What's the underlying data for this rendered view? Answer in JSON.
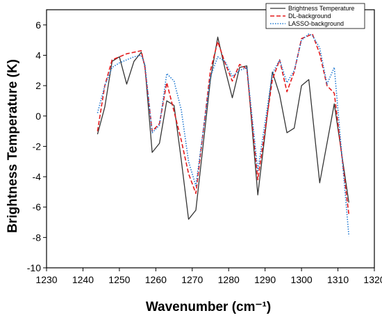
{
  "chart_data": {
    "type": "line",
    "xlabel": "Wavenumber (cm⁻¹)",
    "ylabel": "Brightness Temperature (K)",
    "xlim": [
      1230,
      1320
    ],
    "ylim": [
      -10,
      7
    ],
    "xticks": [
      1230,
      1240,
      1250,
      1260,
      1270,
      1280,
      1290,
      1300,
      1310,
      1320
    ],
    "yticks": [
      -10,
      -8,
      -6,
      -4,
      -2,
      0,
      2,
      4,
      6
    ],
    "grid": false,
    "legend_position": "top-right",
    "series": [
      {
        "name": "Brightness Temperature",
        "color": "#333333",
        "dash": "solid",
        "x": [
          1244,
          1246,
          1248,
          1250,
          1252,
          1254,
          1256,
          1257,
          1259,
          1261,
          1263,
          1265,
          1267,
          1269,
          1271,
          1275,
          1277,
          1279,
          1281,
          1283,
          1285,
          1288,
          1292,
          1294,
          1296,
          1298,
          1300,
          1302,
          1305,
          1309,
          1313
        ],
        "y": [
          -1.2,
          0.6,
          3.6,
          3.9,
          2.1,
          3.6,
          4.2,
          3.3,
          -2.4,
          -1.8,
          1.0,
          0.7,
          -2.9,
          -6.8,
          -6.2,
          2.4,
          5.2,
          3.1,
          1.2,
          3.2,
          3.3,
          -5.2,
          2.9,
          1.4,
          -1.1,
          -0.8,
          2.0,
          2.4,
          -4.4,
          0.8,
          -5.7
        ]
      },
      {
        "name": "DL-background",
        "color": "#e31a1c",
        "dash": "dashed",
        "x": [
          1244,
          1246,
          1248,
          1250,
          1252,
          1254,
          1256,
          1257,
          1259,
          1261,
          1263,
          1265,
          1267,
          1269,
          1271,
          1275,
          1277,
          1279,
          1281,
          1283,
          1285,
          1288,
          1292,
          1294,
          1296,
          1298,
          1300,
          1302,
          1303,
          1305,
          1307,
          1309,
          1313
        ],
        "y": [
          -1.0,
          2.0,
          3.7,
          3.9,
          4.1,
          4.2,
          4.3,
          3.2,
          -1.0,
          -0.5,
          2.2,
          0.3,
          -1.6,
          -3.8,
          -5.1,
          3.0,
          4.9,
          3.5,
          2.3,
          3.4,
          3.1,
          -4.2,
          2.4,
          3.7,
          1.6,
          2.9,
          5.1,
          5.3,
          5.4,
          4.1,
          2.0,
          1.5,
          -6.5
        ]
      },
      {
        "name": "LASSO-background",
        "color": "#1f78d1",
        "dash": "dotted",
        "x": [
          1244,
          1246,
          1248,
          1250,
          1252,
          1254,
          1256,
          1257,
          1259,
          1261,
          1263,
          1265,
          1267,
          1269,
          1271,
          1275,
          1277,
          1279,
          1281,
          1283,
          1285,
          1288,
          1292,
          1294,
          1296,
          1298,
          1300,
          1302,
          1303,
          1305,
          1307,
          1309,
          1313
        ],
        "y": [
          0.2,
          2.0,
          3.2,
          3.5,
          3.7,
          3.9,
          4.0,
          3.4,
          -1.1,
          -0.6,
          2.8,
          2.3,
          0.4,
          -3.0,
          -4.6,
          2.6,
          3.9,
          3.6,
          2.6,
          3.0,
          3.2,
          -3.6,
          2.8,
          3.7,
          2.2,
          3.0,
          5.0,
          5.4,
          5.3,
          4.5,
          2.1,
          3.2,
          -7.9
        ]
      }
    ]
  }
}
